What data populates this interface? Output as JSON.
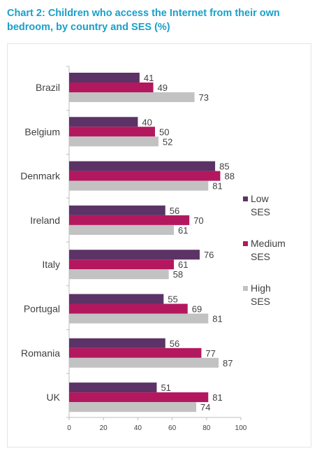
{
  "title": "Chart 2: Children who access the Internet from their own bedroom, by country and SES (%)",
  "colors": {
    "title": "#1a9fc9",
    "low": "#5c3366",
    "medium": "#b3185f",
    "high": "#c2c2c2",
    "axis": "#bdbdbd",
    "text": "#404040"
  },
  "chart_data": {
    "type": "bar",
    "orientation": "horizontal",
    "categories": [
      "Brazil",
      "Belgium",
      "Denmark",
      "Ireland",
      "Italy",
      "Portugal",
      "Romania",
      "UK"
    ],
    "series": [
      {
        "name": "Low SES",
        "legend_lines": [
          "Low",
          "SES"
        ],
        "values": [
          41,
          40,
          85,
          56,
          76,
          55,
          56,
          51
        ]
      },
      {
        "name": "Medium SES",
        "legend_lines": [
          "Medium",
          "SES"
        ],
        "values": [
          49,
          50,
          88,
          70,
          61,
          69,
          77,
          81
        ]
      },
      {
        "name": "High SES",
        "legend_lines": [
          "High",
          "SES"
        ],
        "values": [
          73,
          52,
          81,
          61,
          58,
          81,
          87,
          74
        ]
      }
    ],
    "xlim": [
      0,
      100
    ],
    "xticks": [
      0,
      20,
      40,
      60,
      80,
      100
    ],
    "xlabel": "",
    "ylabel": "",
    "grid": false,
    "data_labels": true,
    "legend_position": "right"
  }
}
